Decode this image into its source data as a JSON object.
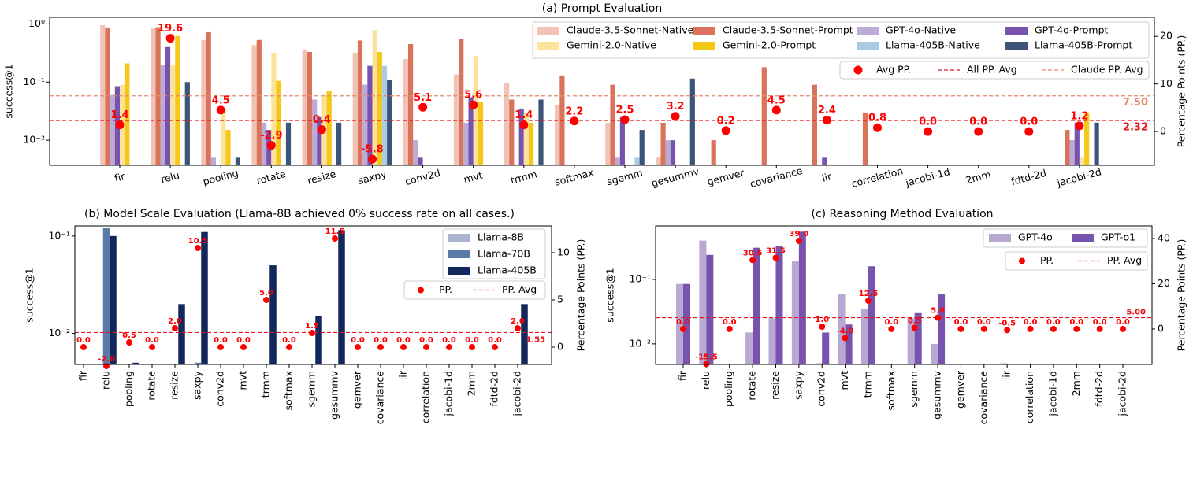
{
  "chart_data": [
    {
      "type": "bar",
      "title": "(a) Prompt Evaluation",
      "ylabel": "success@1",
      "y2label": "Percentage Points (PP.)",
      "y_log": true,
      "categories": [
        "fir",
        "relu",
        "pooling",
        "rotate",
        "resize",
        "saxpy",
        "conv2d",
        "mvt",
        "trmm",
        "softmax",
        "sgemm",
        "gesummv",
        "gemver",
        "covariance",
        "iir",
        "correlation",
        "jacobi-1d",
        "2mm",
        "fdtd-2d",
        "jacobi-2d"
      ],
      "ylim": [
        0.0037,
        1.3
      ],
      "yticks": [
        {
          "value": 0.01,
          "label": "10⁻²"
        },
        {
          "value": 0.1,
          "label": "10⁻¹"
        },
        {
          "value": 1,
          "label": "10⁰"
        }
      ],
      "y2lim": [
        -7.1,
        24
      ],
      "y2ticks": [
        0,
        10,
        20
      ],
      "series": [
        {
          "name": "Claude-3.5-Sonnet-Native",
          "color": "#f2c3b4",
          "values": [
            0.95,
            0.85,
            0.53,
            0.43,
            0.36,
            0.32,
            0.25,
            0.135,
            0.095,
            0.04,
            0.02,
            0.005,
            null,
            null,
            null,
            null,
            null,
            null,
            null,
            null
          ]
        },
        {
          "name": "Claude-3.5-Sonnet-Prompt",
          "color": "#d9735c",
          "values": [
            0.87,
            0.88,
            0.72,
            0.53,
            0.33,
            0.52,
            0.45,
            0.55,
            0.05,
            0.13,
            0.09,
            0.02,
            0.01,
            0.18,
            0.09,
            0.03,
            null,
            null,
            null,
            0.015
          ]
        },
        {
          "name": "GPT-4o-Native",
          "color": "#bcabd6",
          "values": [
            0.06,
            0.2,
            0.005,
            0.02,
            0.05,
            0.09,
            0.01,
            0.02,
            null,
            null,
            0.005,
            0.01,
            null,
            null,
            null,
            null,
            null,
            null,
            null,
            0.01
          ]
        },
        {
          "name": "GPT-4o-Prompt",
          "color": "#7753ad",
          "values": [
            0.085,
            0.4,
            null,
            0.015,
            0.025,
            0.19,
            0.005,
            0.055,
            0.035,
            null,
            0.025,
            0.01,
            null,
            null,
            0.005,
            null,
            null,
            null,
            null,
            0.02
          ]
        },
        {
          "name": "Gemini-2.0-Native",
          "color": "#fbe39c",
          "values": [
            0.09,
            0.2,
            0.035,
            0.32,
            0.06,
            0.78,
            null,
            0.28,
            0.03,
            null,
            null,
            null,
            null,
            null,
            null,
            null,
            null,
            null,
            null,
            0.005
          ]
        },
        {
          "name": "Gemini-2.0-Prompt",
          "color": "#f6c716",
          "values": [
            0.21,
            0.62,
            0.015,
            0.105,
            0.07,
            0.33,
            null,
            0.045,
            0.02,
            null,
            null,
            null,
            null,
            null,
            null,
            null,
            null,
            null,
            null,
            0.03
          ]
        },
        {
          "name": "Llama-405B-Native",
          "color": "#abcbe3",
          "values": [
            null,
            null,
            null,
            null,
            null,
            0.19,
            null,
            null,
            null,
            null,
            0.005,
            null,
            null,
            null,
            null,
            null,
            null,
            null,
            null,
            null
          ]
        },
        {
          "name": "Llama-405B-Prompt",
          "color": "#3d5479",
          "values": [
            null,
            0.1,
            0.005,
            0.02,
            0.02,
            0.11,
            null,
            null,
            0.05,
            null,
            0.015,
            0.115,
            null,
            null,
            null,
            null,
            null,
            null,
            null,
            0.02
          ]
        },
        {
          "type": "scatter",
          "axis": "y2",
          "name": "Avg PP.",
          "color": "#ff0000",
          "values": [
            1.4,
            19.6,
            4.5,
            -2.9,
            0.4,
            -5.8,
            5.1,
            5.6,
            1.4,
            2.2,
            2.5,
            3.2,
            0.2,
            4.5,
            2.4,
            0.8,
            0,
            0,
            0,
            1.2
          ],
          "value_labels": [
            "1.4",
            "19.6",
            "4.5",
            "-2.9",
            "0.4",
            "-5.8",
            "5.1",
            "5.6",
            "1.4",
            "2.2",
            "2.5",
            "3.2",
            "0.2",
            "4.5",
            "2.4",
            "0.8",
            "0.0",
            "0.0",
            "0.0",
            "1.2"
          ]
        }
      ],
      "reference_lines": [
        {
          "name": "All PP. Avg",
          "color": "#e8141a",
          "axis": "y2",
          "value": 2.32,
          "label": "2.32"
        },
        {
          "name": "Claude PP. Avg",
          "color": "#e58a6c",
          "axis": "y2",
          "value": 7.5,
          "label": "7.50"
        }
      ]
    },
    {
      "type": "bar",
      "title": "(b) Model Scale Evaluation (Llama-8B achieved 0% success rate on all cases.)",
      "ylabel": "success@1",
      "y2label": "Percentage Points (PP.)",
      "y_log": true,
      "categories": [
        "fir",
        "relu",
        "pooling",
        "rotate",
        "resize",
        "saxpy",
        "conv2d",
        "mvt",
        "trmm",
        "softmax",
        "sgemm",
        "gesummv",
        "gemver",
        "covariance",
        "iir",
        "correlation",
        "jacobi-1d",
        "2mm",
        "fdtd-2d",
        "jacobi-2d"
      ],
      "ylim": [
        0.0048,
        0.127
      ],
      "yticks": [
        {
          "value": 0.01,
          "label": "10⁻²"
        },
        {
          "value": 0.1,
          "label": "10⁻¹"
        }
      ],
      "y2lim": [
        -1.83,
        12.83
      ],
      "y2ticks": [
        0,
        5,
        10
      ],
      "series": [
        {
          "name": "Llama-8B",
          "color": "#aab3cb",
          "values": [
            null,
            null,
            null,
            null,
            null,
            null,
            null,
            null,
            null,
            null,
            null,
            null,
            null,
            null,
            null,
            null,
            null,
            null,
            null,
            null
          ]
        },
        {
          "name": "Llama-70B",
          "color": "#5a7aa9",
          "values": [
            null,
            0.12,
            null,
            null,
            null,
            0.005,
            null,
            null,
            null,
            null,
            null,
            null,
            null,
            null,
            null,
            null,
            null,
            null,
            null,
            null
          ]
        },
        {
          "name": "Llama-405B",
          "color": "#12275a",
          "values": [
            null,
            0.1,
            0.005,
            null,
            0.02,
            0.11,
            null,
            null,
            0.05,
            null,
            0.015,
            0.115,
            null,
            null,
            null,
            null,
            null,
            null,
            null,
            0.02
          ]
        },
        {
          "type": "scatter",
          "axis": "y2",
          "name": "PP.",
          "color": "#ff0000",
          "values": [
            0,
            -2,
            0.5,
            0,
            2,
            10.5,
            0,
            0,
            5,
            0,
            1.5,
            11.5,
            0,
            0,
            0,
            0,
            0,
            0,
            0,
            2
          ],
          "value_labels": [
            "0.0",
            "-2.0",
            "0.5",
            "0.0",
            "2.0",
            "10.5",
            "0.0",
            "0.0",
            "5.0",
            "0.0",
            "1.5",
            "11.5",
            "0.0",
            "0.0",
            "0.0",
            "0.0",
            "0.0",
            "0.0",
            "0.0",
            "2.0"
          ]
        }
      ],
      "reference_lines": [
        {
          "name": "PP. Avg",
          "color": "#e8141a",
          "axis": "y2",
          "value": 1.55,
          "label": "1.55"
        }
      ]
    },
    {
      "type": "bar",
      "title": "(c) Reasoning Method Evaluation",
      "ylabel": "success@1",
      "y2label": "Percentage Points (PP.)",
      "y_log": true,
      "categories": [
        "fir",
        "relu",
        "pooling",
        "rotate",
        "resize",
        "saxpy",
        "conv2d",
        "mvt",
        "trmm",
        "softmax",
        "sgemm",
        "gesummv",
        "gemver",
        "covariance",
        "iir",
        "correlation",
        "jacobi-1d",
        "2mm",
        "fdtd-2d",
        "jacobi-2d"
      ],
      "ylim": [
        0.0048,
        0.675
      ],
      "yticks": [
        {
          "value": 0.01,
          "label": "10⁻²"
        },
        {
          "value": 0.1,
          "label": "10⁻¹"
        }
      ],
      "y2lim": [
        -15.7,
        45.6
      ],
      "y2ticks": [
        0,
        20,
        40
      ],
      "series": [
        {
          "name": "GPT-4o",
          "color": "#b9a8d2",
          "values": [
            0.085,
            0.4,
            null,
            0.015,
            0.025,
            0.19,
            0.005,
            0.06,
            0.035,
            null,
            0.025,
            0.01,
            null,
            null,
            0.005,
            null,
            null,
            null,
            null,
            null
          ]
        },
        {
          "name": "GPT-o1",
          "color": "#7753ad",
          "values": [
            0.085,
            0.24,
            null,
            0.31,
            0.33,
            0.55,
            0.015,
            0.02,
            0.16,
            null,
            0.03,
            0.06,
            null,
            null,
            null,
            null,
            null,
            null,
            null,
            null
          ]
        },
        {
          "type": "scatter",
          "axis": "y2",
          "name": "PP.",
          "color": "#ff0000",
          "values": [
            0,
            -15.5,
            0,
            30.5,
            31.5,
            39,
            1,
            -4,
            12.5,
            0,
            0.5,
            5,
            0,
            0,
            -0.5,
            0,
            0,
            0,
            0,
            0
          ],
          "value_labels": [
            "0.0",
            "-15.5",
            "0.0",
            "30.5",
            "31.5",
            "39.0",
            "1.0",
            "-4.0",
            "12.5",
            "0.0",
            "0.5",
            "5.0",
            "0.0",
            "0.0",
            "-0.5",
            "0.0",
            "0.0",
            "0.0",
            "0.0",
            "0.0"
          ]
        }
      ],
      "reference_lines": [
        {
          "name": "PP. Avg",
          "color": "#e8141a",
          "axis": "y2",
          "value": 5,
          "label": "5.00"
        }
      ]
    }
  ]
}
